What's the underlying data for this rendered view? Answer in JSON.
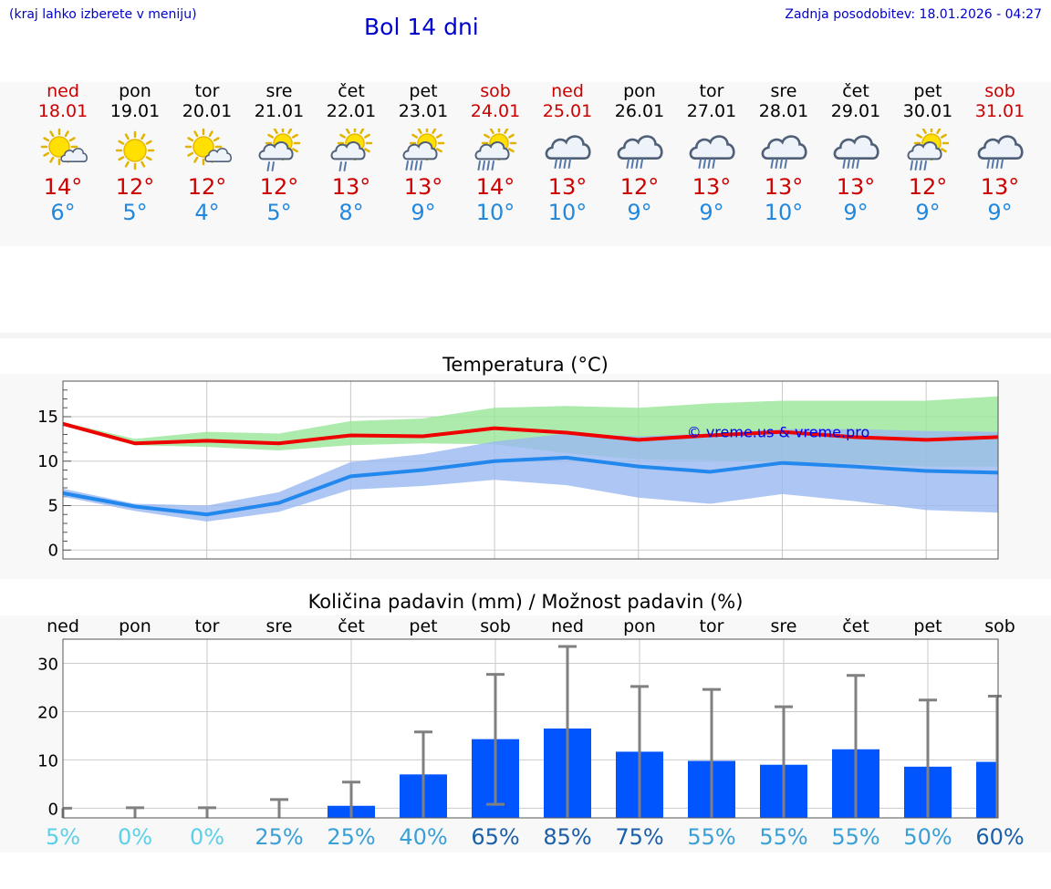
{
  "header": {
    "hint": "(kraj lahko izberete v meniju)",
    "title": "Bol 14 dni",
    "updated": "Zadnja posodobitev: 18.01.2026 - 04:27"
  },
  "days": [
    {
      "name": "ned",
      "date": "18.01",
      "icon": "sun-cloud-icon",
      "max": "14°",
      "min": "6°",
      "weekend": true
    },
    {
      "name": "pon",
      "date": "19.01",
      "icon": "sun-icon",
      "max": "12°",
      "min": "5°",
      "weekend": false
    },
    {
      "name": "tor",
      "date": "20.01",
      "icon": "sun-cloud-icon",
      "max": "12°",
      "min": "4°",
      "weekend": false
    },
    {
      "name": "sre",
      "date": "21.01",
      "icon": "sun-cloud-drizzle-icon",
      "max": "12°",
      "min": "5°",
      "weekend": false
    },
    {
      "name": "čet",
      "date": "22.01",
      "icon": "sun-cloud-drizzle-icon",
      "max": "13°",
      "min": "8°",
      "weekend": false
    },
    {
      "name": "pet",
      "date": "23.01",
      "icon": "sun-cloud-rain-icon",
      "max": "13°",
      "min": "9°",
      "weekend": false
    },
    {
      "name": "sob",
      "date": "24.01",
      "icon": "sun-cloud-rain-icon",
      "max": "14°",
      "min": "10°",
      "weekend": true
    },
    {
      "name": "ned",
      "date": "25.01",
      "icon": "rain-cloud-icon",
      "max": "13°",
      "min": "10°",
      "weekend": true
    },
    {
      "name": "pon",
      "date": "26.01",
      "icon": "rain-cloud-icon",
      "max": "12°",
      "min": "9°",
      "weekend": false
    },
    {
      "name": "tor",
      "date": "27.01",
      "icon": "rain-cloud-icon",
      "max": "13°",
      "min": "9°",
      "weekend": false
    },
    {
      "name": "sre",
      "date": "28.01",
      "icon": "rain-cloud-icon",
      "max": "13°",
      "min": "10°",
      "weekend": false
    },
    {
      "name": "čet",
      "date": "29.01",
      "icon": "rain-cloud-icon",
      "max": "13°",
      "min": "9°",
      "weekend": false
    },
    {
      "name": "pet",
      "date": "30.01",
      "icon": "sun-cloud-rain-icon",
      "max": "12°",
      "min": "9°",
      "weekend": false
    },
    {
      "name": "sob",
      "date": "31.01",
      "icon": "rain-cloud-icon",
      "max": "13°",
      "min": "9°",
      "weekend": true
    }
  ],
  "colors": {
    "weekend": "#cc0000",
    "max_line": "#ee0000",
    "min_line": "#2288ee",
    "max_band": "#99e699",
    "min_band": "#99b8f0",
    "bar": "#0055ff",
    "whisker": "#808080"
  },
  "chart_data": [
    {
      "type": "line",
      "title": "Temperatura (°C)",
      "watermark": "© vreme.us & vreme.pro",
      "x": [
        0,
        1,
        2,
        3,
        4,
        5,
        6,
        7,
        8,
        9,
        10,
        11,
        12,
        13
      ],
      "ylim": [
        -1,
        19
      ],
      "yticks": [
        0,
        5,
        10,
        15
      ],
      "series": [
        {
          "name": "max",
          "values": [
            14.2,
            12.0,
            12.3,
            12.0,
            12.9,
            12.8,
            13.7,
            13.2,
            12.4,
            12.9,
            13.3,
            12.7,
            12.4,
            12.7
          ],
          "band_low": [
            14.0,
            11.8,
            11.6,
            11.2,
            11.8,
            12.0,
            11.9,
            10.9,
            10.2,
            10.1,
            9.9,
            9.7,
            9.4,
            9.4
          ],
          "band_high": [
            14.4,
            12.5,
            13.3,
            13.1,
            14.5,
            14.8,
            16.0,
            16.2,
            16.0,
            16.5,
            16.8,
            16.8,
            16.8,
            17.3
          ]
        },
        {
          "name": "min",
          "values": [
            6.4,
            4.9,
            4.0,
            5.3,
            8.3,
            9.0,
            10.0,
            10.4,
            9.4,
            8.8,
            9.8,
            9.4,
            8.9,
            8.7
          ],
          "band_low": [
            6.0,
            4.4,
            3.2,
            4.3,
            6.8,
            7.2,
            7.9,
            7.3,
            5.9,
            5.2,
            6.3,
            5.5,
            4.5,
            4.2
          ],
          "band_high": [
            6.9,
            5.2,
            5.0,
            6.5,
            9.9,
            10.8,
            12.2,
            13.1,
            12.8,
            13.1,
            13.6,
            13.6,
            13.4,
            13.3
          ]
        }
      ]
    },
    {
      "type": "bar",
      "title": "Količina padavin (mm) / Možnost padavin (%)",
      "categories": [
        "ned",
        "pon",
        "tor",
        "sre",
        "čet",
        "pet",
        "sob",
        "ned",
        "pon",
        "tor",
        "sre",
        "čet",
        "pet",
        "sob"
      ],
      "values": [
        0,
        0,
        0,
        0,
        0.5,
        7,
        14.3,
        16.5,
        11.7,
        9.8,
        9.0,
        12.2,
        8.6,
        9.6
      ],
      "whisker_low": [
        0,
        0,
        0,
        0,
        0,
        0,
        0.8,
        0,
        0,
        0,
        0,
        0,
        0,
        0
      ],
      "whisker_high": [
        0,
        0.1,
        0.1,
        1.8,
        5.4,
        15.8,
        27.7,
        33.5,
        25.2,
        24.6,
        21.0,
        27.5,
        22.4,
        23.2
      ],
      "ylim": [
        -2,
        35
      ],
      "yticks": [
        0,
        10,
        20,
        30
      ],
      "probability": [
        "5%",
        "0%",
        "0%",
        "25%",
        "25%",
        "40%",
        "65%",
        "85%",
        "75%",
        "55%",
        "55%",
        "55%",
        "50%",
        "60%"
      ],
      "probability_values": [
        5,
        0,
        0,
        25,
        25,
        40,
        65,
        85,
        75,
        55,
        55,
        55,
        50,
        60
      ]
    }
  ]
}
